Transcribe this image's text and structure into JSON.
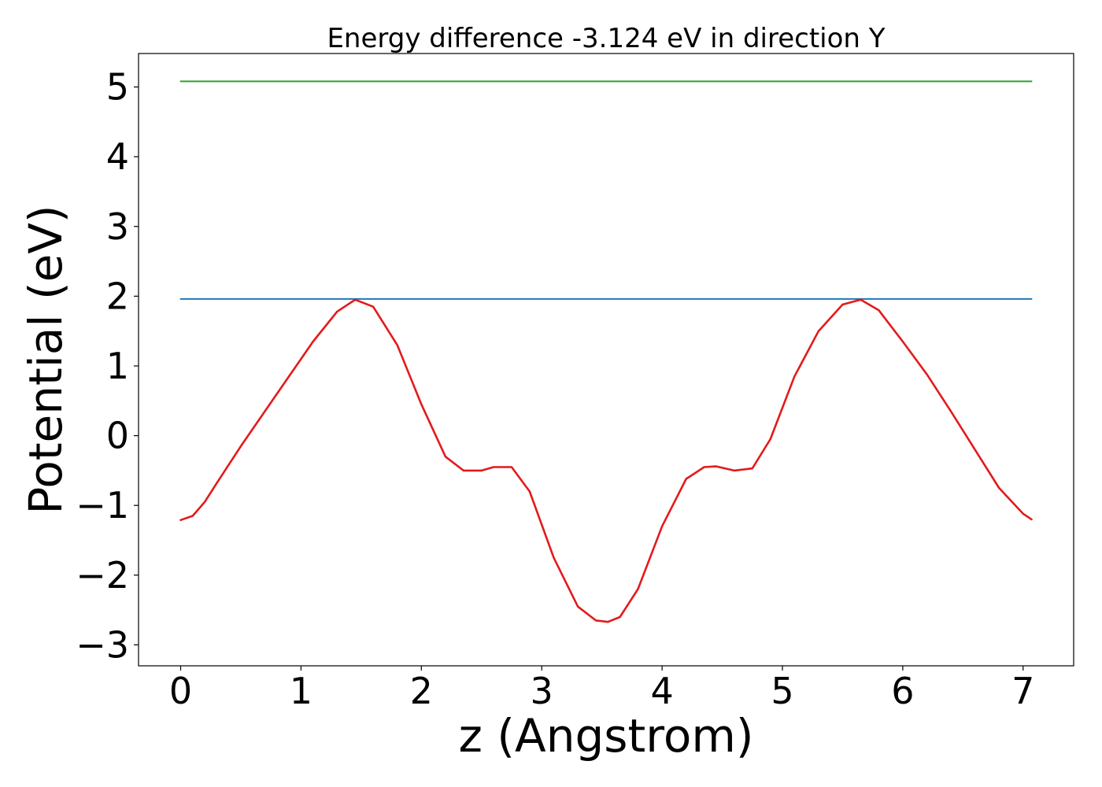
{
  "chart_data": {
    "type": "line",
    "title": "Energy difference -3.124 eV in direction Y",
    "xlabel": "z (Angstrom)",
    "ylabel": "Potential (eV)",
    "xlim": [
      -0.35,
      7.42
    ],
    "ylim": [
      -3.3,
      5.48
    ],
    "xticks": [
      0,
      1,
      2,
      3,
      4,
      5,
      6,
      7
    ],
    "xtick_labels": [
      "0",
      "1",
      "2",
      "3",
      "4",
      "5",
      "6",
      "7"
    ],
    "yticks": [
      -3,
      -2,
      -1,
      0,
      1,
      2,
      3,
      4,
      5
    ],
    "ytick_labels": [
      "−3",
      "−2",
      "−1",
      "0",
      "1",
      "2",
      "3",
      "4",
      "5"
    ],
    "grid": false,
    "legend": "none",
    "series": [
      {
        "color": "#2ca02c",
        "x": [
          0,
          7.07
        ],
        "y": [
          5.08,
          5.08
        ]
      },
      {
        "color": "#1f77b4",
        "x": [
          0,
          7.07
        ],
        "y": [
          1.96,
          1.96
        ]
      },
      {
        "color": "#e31a1c",
        "x": [
          0,
          0.1,
          0.2,
          0.3,
          0.5,
          0.7,
          0.9,
          1.1,
          1.3,
          1.45,
          1.6,
          1.8,
          2.0,
          2.2,
          2.35,
          2.5,
          2.6,
          2.75,
          2.9,
          3.1,
          3.3,
          3.45,
          3.55,
          3.65,
          3.8,
          4.0,
          4.2,
          4.35,
          4.45,
          4.6,
          4.75,
          4.9,
          5.1,
          5.3,
          5.5,
          5.65,
          5.8,
          6.0,
          6.2,
          6.4,
          6.6,
          6.8,
          7.0,
          7.07
        ],
        "y": [
          -1.21,
          -1.15,
          -0.95,
          -0.68,
          -0.15,
          0.35,
          0.85,
          1.35,
          1.78,
          1.95,
          1.85,
          1.3,
          0.45,
          -0.3,
          -0.5,
          -0.5,
          -0.45,
          -0.45,
          -0.8,
          -1.75,
          -2.45,
          -2.65,
          -2.67,
          -2.6,
          -2.2,
          -1.3,
          -0.62,
          -0.45,
          -0.44,
          -0.5,
          -0.47,
          -0.05,
          0.85,
          1.5,
          1.88,
          1.95,
          1.8,
          1.35,
          0.88,
          0.35,
          -0.2,
          -0.75,
          -1.12,
          -1.2
        ]
      }
    ]
  }
}
